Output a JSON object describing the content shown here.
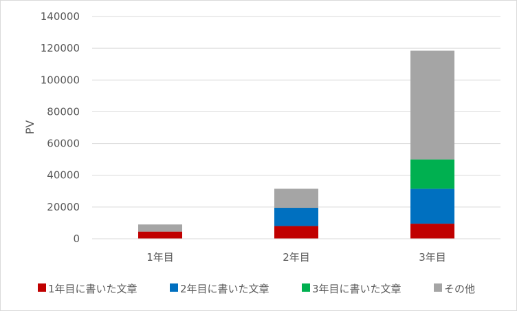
{
  "chart_data": {
    "type": "bar",
    "stacked": true,
    "categories": [
      "1年目",
      "2年目",
      "3年目"
    ],
    "ylabel": "PV",
    "ylim": [
      0,
      140000
    ],
    "yticks": [
      0,
      20000,
      40000,
      60000,
      80000,
      100000,
      120000,
      140000
    ],
    "grid": true,
    "legend_position": "bottom",
    "series": [
      {
        "name": "1年目に書いた文章",
        "color": "#c00000",
        "values": [
          4500,
          8000,
          9500
        ]
      },
      {
        "name": "2年目に書いた文章",
        "color": "#0070c0",
        "values": [
          0,
          11500,
          22000
        ]
      },
      {
        "name": "3年目に書いた文章",
        "color": "#00b050",
        "values": [
          0,
          0,
          18500
        ]
      },
      {
        "name": "その他",
        "color": "#a5a5a5",
        "values": [
          4500,
          12000,
          68500
        ]
      }
    ]
  }
}
